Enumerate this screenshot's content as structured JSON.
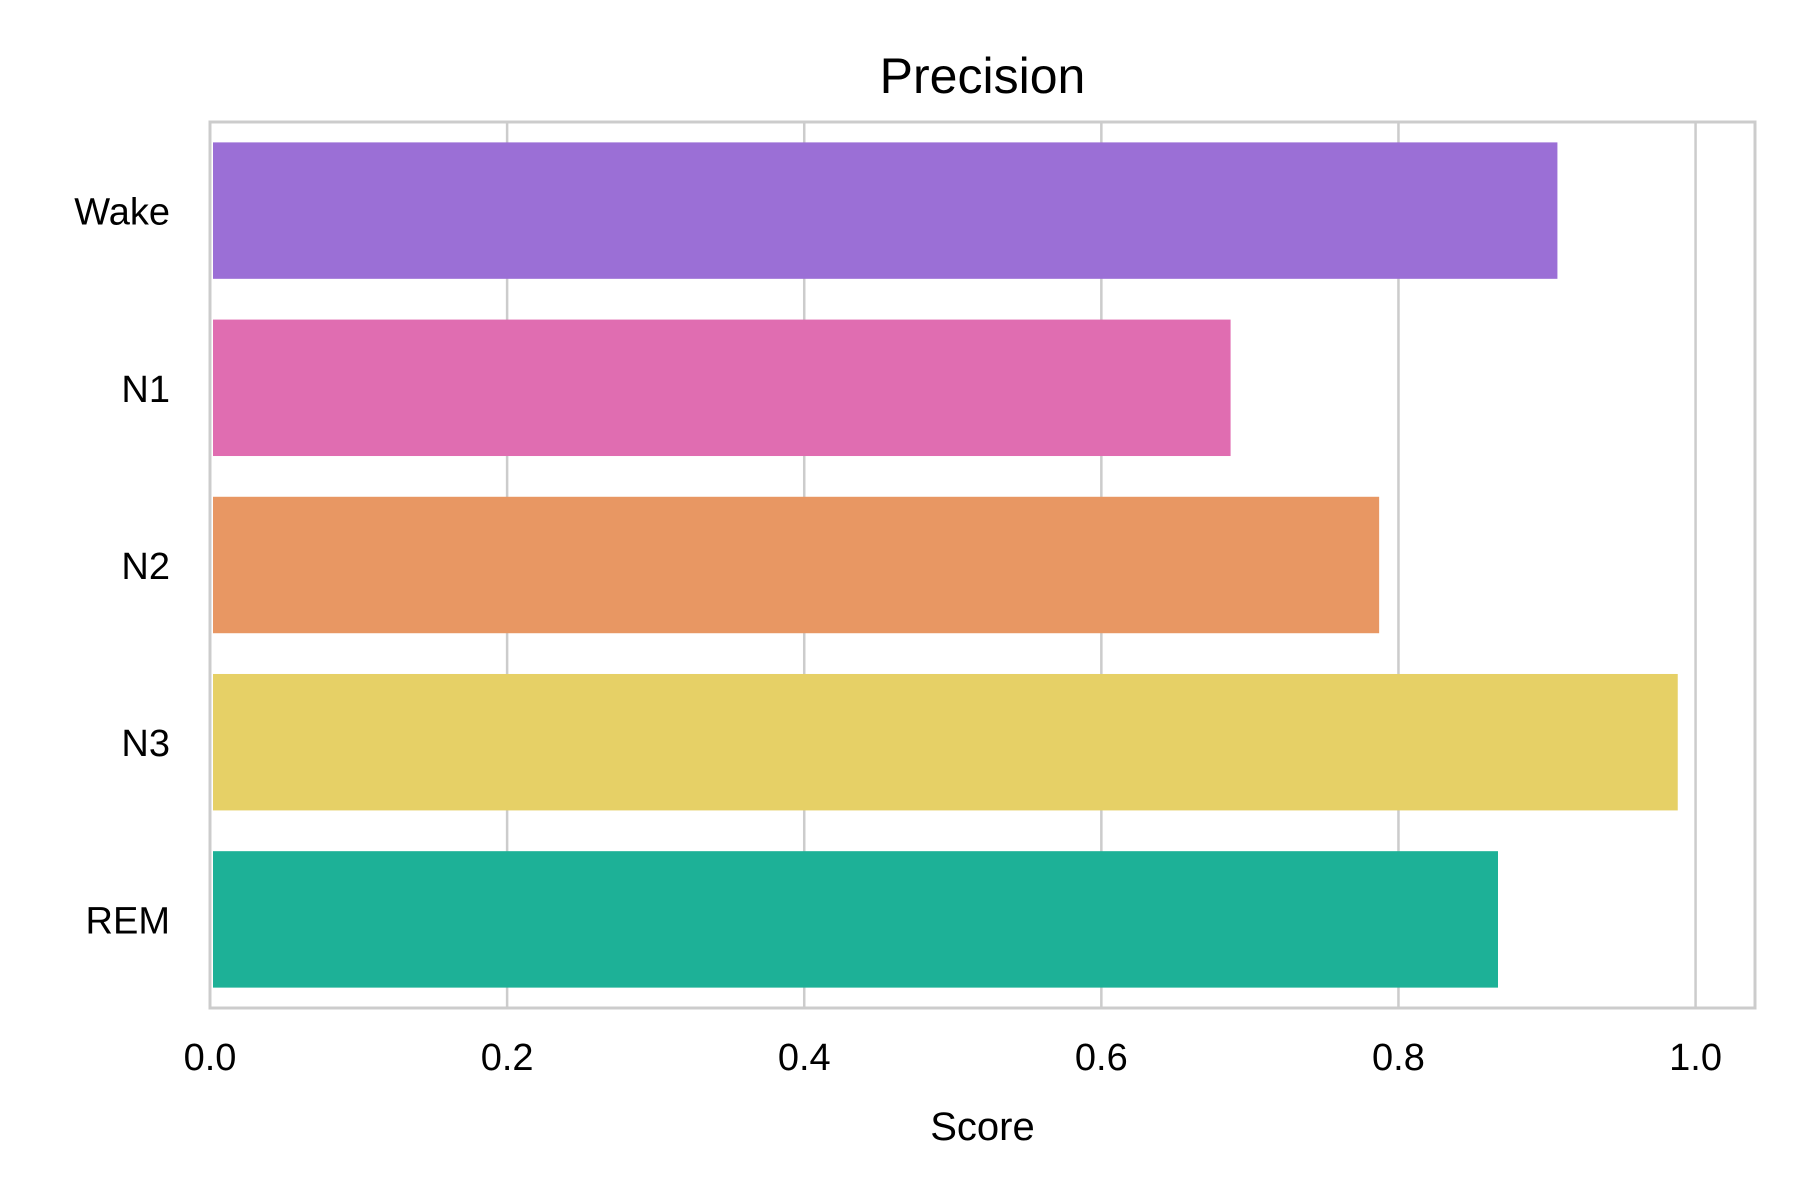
{
  "chart_data": {
    "type": "bar",
    "orientation": "horizontal",
    "title": "Precision",
    "xlabel": "Score",
    "ylabel": "",
    "categories": [
      "Wake",
      "N1",
      "N2",
      "N3",
      "REM"
    ],
    "values": [
      0.907,
      0.687,
      0.787,
      0.988,
      0.867
    ],
    "colors": [
      "#9b6fd6",
      "#e06db1",
      "#e89763",
      "#e6d066",
      "#1db197"
    ],
    "xlim": [
      0.0,
      1.04
    ],
    "xticks": [
      0.0,
      0.2,
      0.4,
      0.6,
      0.8,
      1.0
    ],
    "xtick_labels": [
      "0.0",
      "0.2",
      "0.4",
      "0.6",
      "0.8",
      "1.0"
    ],
    "grid": "vertical",
    "legend": "none"
  }
}
